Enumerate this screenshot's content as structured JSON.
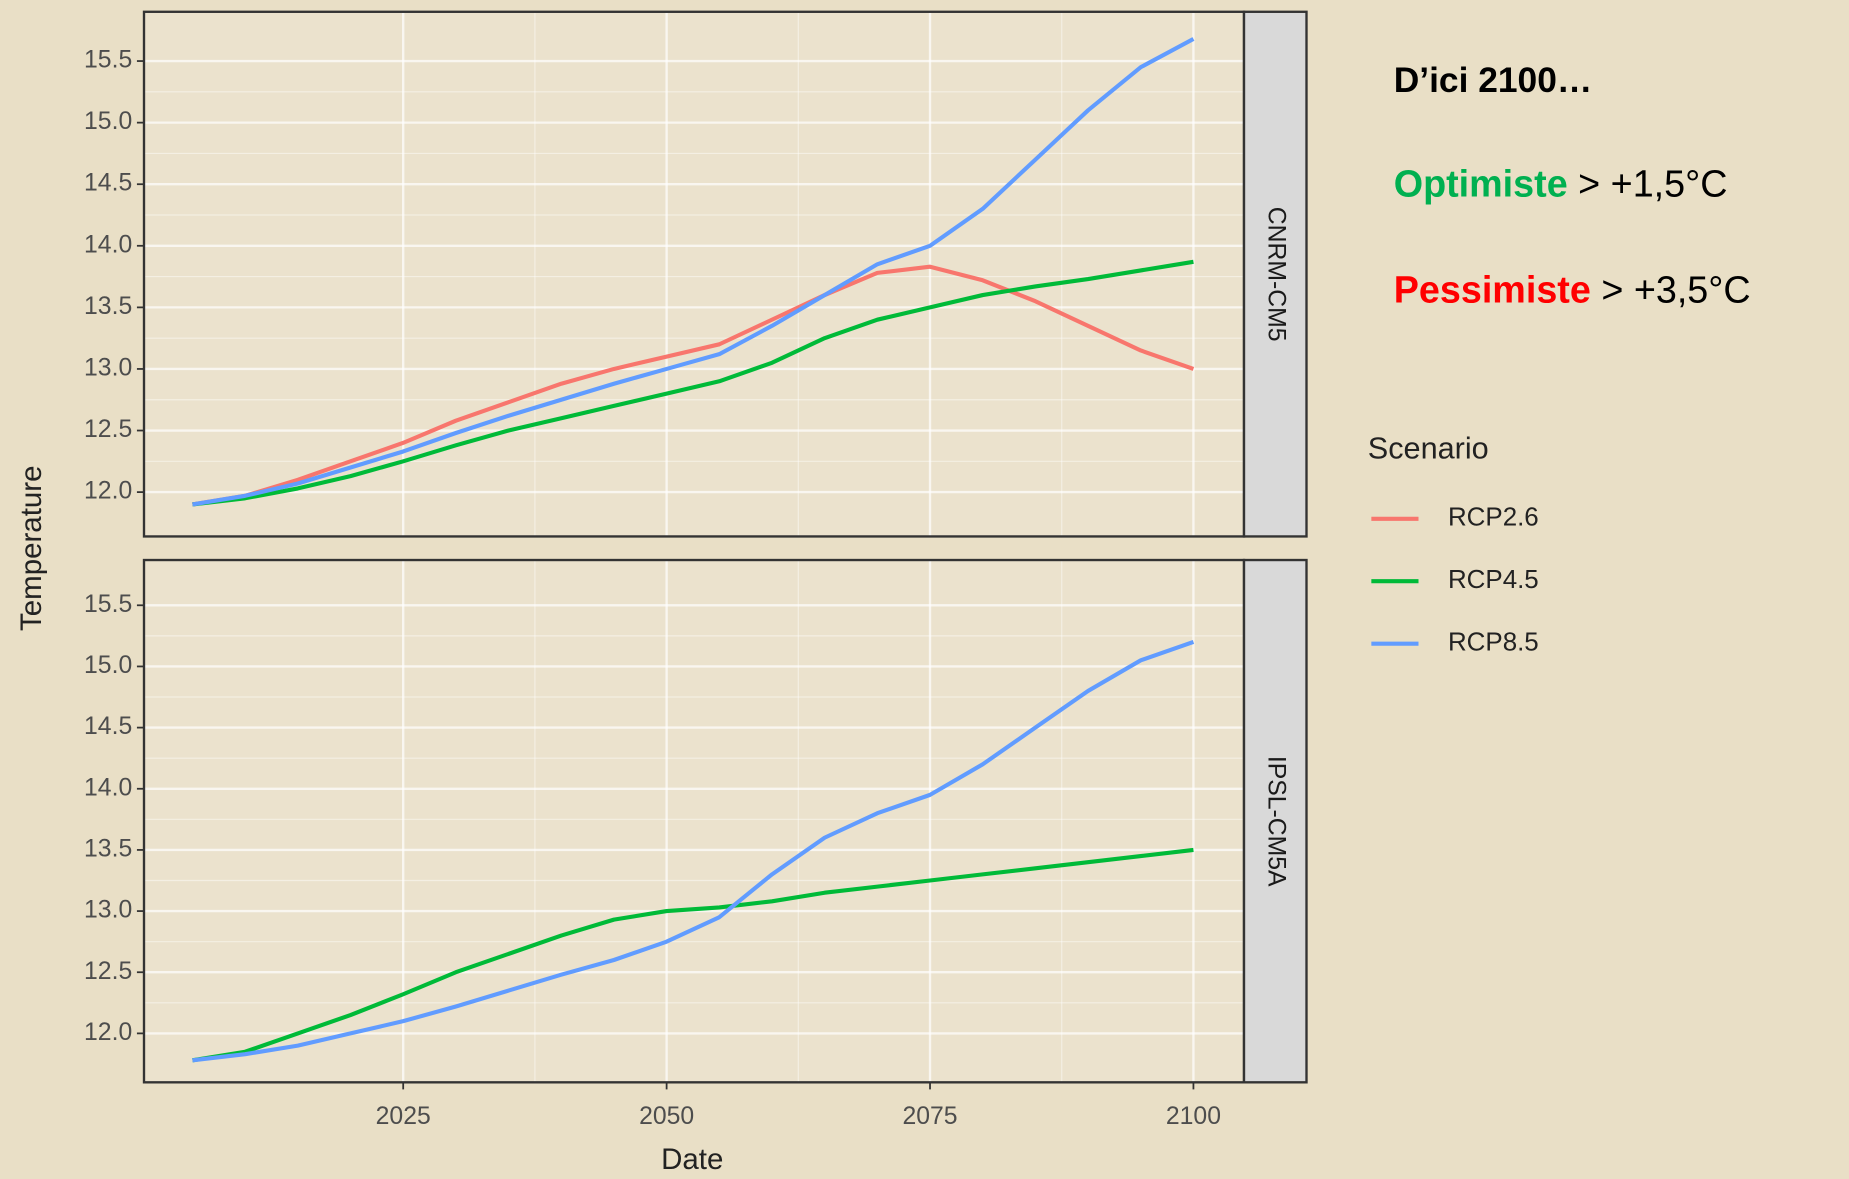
{
  "chart_data": [
    {
      "type": "line",
      "facet": "CNRM-CM5",
      "x": [
        2005,
        2010,
        2015,
        2020,
        2025,
        2030,
        2035,
        2040,
        2045,
        2050,
        2055,
        2060,
        2065,
        2070,
        2075,
        2080,
        2085,
        2090,
        2095,
        2100
      ],
      "series": [
        {
          "name": "RCP2.6",
          "color": "#f8766d",
          "values": [
            11.9,
            11.97,
            12.1,
            12.25,
            12.4,
            12.58,
            12.73,
            12.88,
            13.0,
            13.1,
            13.2,
            13.4,
            13.6,
            13.78,
            13.83,
            13.72,
            13.55,
            13.35,
            13.15,
            13.0
          ]
        },
        {
          "name": "RCP4.5",
          "color": "#00ba38",
          "values": [
            11.9,
            11.95,
            12.03,
            12.13,
            12.25,
            12.38,
            12.5,
            12.6,
            12.7,
            12.8,
            12.9,
            13.05,
            13.25,
            13.4,
            13.5,
            13.6,
            13.67,
            13.73,
            13.8,
            13.87
          ]
        },
        {
          "name": "RCP8.5",
          "color": "#619cff",
          "values": [
            11.9,
            11.97,
            12.07,
            12.2,
            12.33,
            12.48,
            12.62,
            12.75,
            12.88,
            13.0,
            13.12,
            13.35,
            13.6,
            13.85,
            14.0,
            14.3,
            14.7,
            15.1,
            15.45,
            15.68
          ]
        }
      ],
      "xlim": [
        2000.4,
        2104.8
      ],
      "xticks": [
        2025,
        2050,
        2075,
        2100
      ],
      "ylim": [
        11.64,
        15.9
      ],
      "yticks": [
        {
          "value": 12,
          "label": "12.0"
        },
        12.5,
        {
          "value": 13,
          "label": "13.0"
        },
        13.5,
        {
          "value": 14,
          "label": "14.0"
        },
        14.5,
        {
          "value": 15,
          "label": "15.0"
        },
        15.5
      ]
    },
    {
      "type": "line",
      "facet": "IPSL-CM5A",
      "x": [
        2005,
        2010,
        2015,
        2020,
        2025,
        2030,
        2035,
        2040,
        2045,
        2050,
        2055,
        2060,
        2065,
        2070,
        2075,
        2080,
        2085,
        2090,
        2095,
        2100
      ],
      "series": [
        {
          "name": "RCP4.5",
          "color": "#00ba38",
          "values": [
            11.78,
            11.85,
            12.0,
            12.15,
            12.32,
            12.5,
            12.65,
            12.8,
            12.93,
            13.0,
            13.03,
            13.08,
            13.15,
            13.2,
            13.25,
            13.3,
            13.35,
            13.4,
            13.45,
            13.5
          ]
        },
        {
          "name": "RCP8.5",
          "color": "#619cff",
          "values": [
            11.78,
            11.83,
            11.9,
            12.0,
            12.1,
            12.22,
            12.35,
            12.48,
            12.6,
            12.75,
            12.95,
            13.3,
            13.6,
            13.8,
            13.95,
            14.2,
            14.5,
            14.8,
            15.05,
            15.2
          ]
        }
      ],
      "xlim": [
        2000.4,
        2104.8
      ],
      "xticks": [
        2025,
        2050,
        2075,
        2100
      ],
      "ylim": [
        11.6,
        15.87
      ],
      "yticks": [
        {
          "value": 12,
          "label": "12.0"
        },
        12.5,
        {
          "value": 13,
          "label": "13.0"
        },
        13.5,
        {
          "value": 14,
          "label": "14.0"
        },
        14.5,
        {
          "value": 15,
          "label": "15.0"
        },
        15.5
      ]
    }
  ],
  "axis_labels": {
    "x": "Date",
    "y": "Temperature"
  },
  "legend_title": "Scenario",
  "annotation": {
    "heading": "D’ici 2100…",
    "lines": [
      {
        "label": "Optimiste",
        "color": "#00b050",
        "text": "> +1,5°C"
      },
      {
        "label": "Pessimiste",
        "color": "#ff0000",
        "text": "> +3,5°C"
      }
    ]
  }
}
